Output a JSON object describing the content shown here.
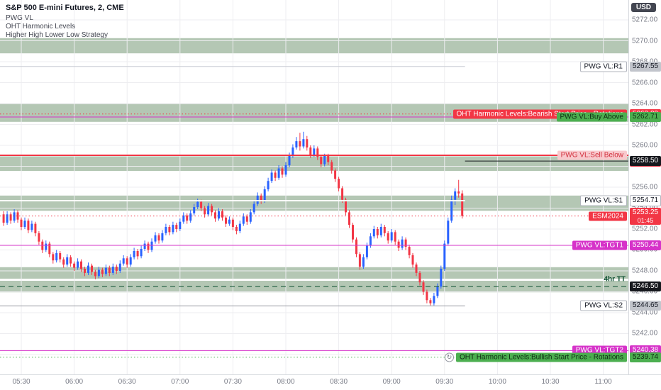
{
  "legend": {
    "title": "S&P 500 E-mini Futures, 2, CME",
    "lines": [
      "PWG VL",
      "OHT Harmonic Levels",
      "Higher High Lower Low Strategy"
    ]
  },
  "currency_badge": "USD",
  "colors": {
    "up": "#2962ff",
    "down": "#f23645",
    "band": "#b4c7b4",
    "grid": "#ededf0",
    "axis_text": "#787b86",
    "background": "#ffffff",
    "axis_border": "#d6d9de"
  },
  "chart_data": {
    "type": "candlestick",
    "symbol": "ESM2024",
    "title": "S&P 500 E-mini Futures, 2, CME",
    "interval_label": "2",
    "exchange": "CME",
    "step_minutes": 2,
    "start_time": "05:20",
    "last_price": "5253.25",
    "ylim": [
      5238.1,
      5273.9
    ],
    "time_axis": {
      "ticks": [
        "05:30",
        "06:00",
        "06:30",
        "07:00",
        "07:30",
        "08:00",
        "08:30",
        "09:00",
        "09:30",
        "10:00",
        "10:30",
        "11:00"
      ],
      "first_tick_x": 30,
      "spacing_px": 74.6
    },
    "price_axis": {
      "labels": [
        "5272.00",
        "5270.00",
        "5268.00",
        "5266.00",
        "5264.00",
        "5262.00",
        "5260.00",
        "5256.00",
        "5254.00",
        "5252.00",
        "5250.00",
        "5248.00",
        "5246.00",
        "5244.00",
        "5242.00"
      ]
    },
    "bands": [
      [
        5270.25,
        5268.8
      ],
      [
        5263.95,
        5262.25
      ],
      [
        5258.95,
        5257.55
      ],
      [
        5255.2,
        5253.75
      ],
      [
        5248.35,
        5247.25
      ],
      [
        5247.05,
        5245.95
      ]
    ],
    "levels": [
      {
        "name": "pwg-r1",
        "tag": "PWG VL:R1",
        "value": "5267.55",
        "price": 5267.55,
        "line": {
          "color": "#c9ccd3",
          "style": "solid",
          "span": "to-last",
          "width": 1
        },
        "tag_bg": "#ffffff",
        "tag_fg": "#131722",
        "tag_border": "#b2b5be",
        "box_bg": "#c2c5cc",
        "box_fg": "#131722"
      },
      {
        "name": "oht-bearish-start",
        "tag": "OHT Harmonic Levels:Bearish Start Price - Rotations",
        "value": "5263.00",
        "price": 5263.0,
        "line": {
          "color": "#f23645",
          "style": "dotted",
          "span": "full",
          "width": 1
        },
        "tag_bg": "#f23645",
        "tag_fg": "#ffffff",
        "box_bg": "#f23645",
        "box_fg": "#ffffff"
      },
      {
        "name": "pwg-buy-above",
        "tag": "PWG VL:Buy Above",
        "value": "5262.71",
        "price": 5262.71,
        "line": {
          "color": "#d633c9",
          "style": "solid",
          "span": "full",
          "width": 1
        },
        "tag_bg": "#4caf50",
        "tag_fg": "#0d2a12",
        "box_bg": "#4caf50",
        "box_fg": "#0d2a12"
      },
      {
        "name": "pwg-sell-below",
        "tag": "PWG VL:Sell Below",
        "value": "5258.43",
        "price": 5258.43,
        "render_price": 5259.05,
        "line": {
          "color": "#f23645",
          "style": "solid",
          "span": "full",
          "width": 2
        },
        "tag_bg": "#f8c9cd",
        "tag_fg": "#d22f3c",
        "box_bg": "#f23645",
        "box_fg": "#ffffff"
      },
      {
        "name": "close-line",
        "value": "5258.50",
        "price": 5258.5,
        "line": {
          "color": "#16181d",
          "style": "solid",
          "span": "from-last",
          "width": 1
        },
        "box_bg": "#16181d",
        "box_fg": "#ffffff"
      },
      {
        "name": "pwg-s1",
        "tag": "PWG VL:S1",
        "value": "5254.71",
        "price": 5254.71,
        "line": {
          "color": "#ffffff",
          "style": "solid",
          "span": "to-last",
          "width": 2
        },
        "tag_bg": "#ffffff",
        "tag_fg": "#131722",
        "tag_border": "#b2b5be",
        "box_bg": "#ffffff",
        "box_fg": "#131722",
        "box_border": "#b2b5be"
      },
      {
        "name": "current-price",
        "tag": "ESM2024",
        "value": "5253.25",
        "countdown": "01:45",
        "price": 5253.25,
        "line": {
          "color": "#f23645",
          "style": "dotted",
          "span": "full",
          "width": 1
        },
        "tag_bg": "#f23645",
        "tag_fg": "#ffffff",
        "box_bg": "#f23645",
        "box_fg": "#ffffff"
      },
      {
        "name": "pwg-tgt1",
        "tag": "PWG VL:TGT1",
        "value": "5250.44",
        "price": 5250.44,
        "line": {
          "color": "#d633c9",
          "style": "solid",
          "span": "full",
          "width": 1
        },
        "tag_bg": "#d633c9",
        "tag_fg": "#ffffff",
        "box_bg": "#d633c9",
        "box_fg": "#ffffff"
      },
      {
        "name": "4hr-tt",
        "tag": "4hr TT",
        "value": "5246.50",
        "price": 5246.5,
        "tag_price": 5247.2,
        "line": {
          "color": "#0f5132",
          "style": "dashed",
          "span": "full",
          "width": 1
        },
        "tag_bg": "none",
        "tag_fg": "#0f5132",
        "box_bg": "#16181d",
        "box_fg": "#ffffff"
      },
      {
        "name": "pwg-s2",
        "tag": "PWG VL:S2",
        "value": "5244.65",
        "price": 5244.65,
        "line": {
          "color": "#9598a1",
          "style": "solid",
          "span": "to-last",
          "width": 1
        },
        "tag_bg": "#ffffff",
        "tag_fg": "#131722",
        "tag_border": "#b2b5be",
        "box_bg": "#c2c5cc",
        "box_fg": "#131722"
      },
      {
        "name": "pwg-tgt2",
        "tag": "PWG VL:TGT2",
        "value": "5240.38",
        "price": 5240.38,
        "line": {
          "color": "#d633c9",
          "style": "solid",
          "span": "full",
          "width": 1
        },
        "tag_bg": "#d633c9",
        "tag_fg": "#ffffff",
        "box_bg": "#d633c9",
        "box_fg": "#ffffff"
      },
      {
        "name": "oht-bullish-start",
        "tag": "OHT Harmonic Levels:Bullish Start Price - Rotations",
        "value": "5239.74",
        "price": 5239.74,
        "icon": true,
        "line": {
          "color": "#4caf50",
          "style": "dotted",
          "span": "full",
          "width": 1
        },
        "tag_bg": "#4caf50",
        "tag_fg": "#0d2a12",
        "box_bg": "#4caf50",
        "box_fg": "#0d2a12"
      }
    ],
    "ohlc": [
      [
        5253.4,
        5253.7,
        5252.3,
        5252.6
      ],
      [
        5252.6,
        5253.7,
        5252.4,
        5253.4
      ],
      [
        5253.4,
        5253.6,
        5252.5,
        5252.8
      ],
      [
        5252.8,
        5253.9,
        5252.6,
        5253.6
      ],
      [
        5253.6,
        5253.8,
        5252.6,
        5252.9
      ],
      [
        5252.9,
        5253.1,
        5251.9,
        5252.2
      ],
      [
        5252.2,
        5253.1,
        5252.0,
        5252.8
      ],
      [
        5252.8,
        5253.0,
        5251.6,
        5251.9
      ],
      [
        5251.9,
        5252.8,
        5251.7,
        5252.5
      ],
      [
        5252.5,
        5252.7,
        5251.3,
        5251.6
      ],
      [
        5251.6,
        5251.8,
        5250.5,
        5250.8
      ],
      [
        5250.8,
        5251.0,
        5249.7,
        5250.0
      ],
      [
        5250.0,
        5250.9,
        5249.8,
        5250.6
      ],
      [
        5250.6,
        5250.8,
        5249.3,
        5249.6
      ],
      [
        5249.6,
        5249.8,
        5248.7,
        5249.0
      ],
      [
        5249.0,
        5250.0,
        5248.8,
        5249.7
      ],
      [
        5249.7,
        5249.9,
        5248.8,
        5249.1
      ],
      [
        5249.1,
        5249.3,
        5248.3,
        5248.6
      ],
      [
        5248.6,
        5249.6,
        5248.4,
        5249.3
      ],
      [
        5249.3,
        5249.5,
        5248.4,
        5248.7
      ],
      [
        5248.7,
        5248.9,
        5248.0,
        5248.3
      ],
      [
        5248.3,
        5249.2,
        5248.1,
        5248.9
      ],
      [
        5248.9,
        5249.1,
        5247.9,
        5248.2
      ],
      [
        5248.2,
        5248.4,
        5247.5,
        5247.8
      ],
      [
        5247.8,
        5248.8,
        5247.6,
        5248.5
      ],
      [
        5248.5,
        5248.7,
        5247.6,
        5247.9
      ],
      [
        5247.9,
        5248.1,
        5247.2,
        5247.5
      ],
      [
        5247.5,
        5248.4,
        5247.3,
        5248.1
      ],
      [
        5248.1,
        5248.3,
        5247.4,
        5247.7
      ],
      [
        5247.7,
        5248.6,
        5247.5,
        5248.3
      ],
      [
        5248.3,
        5248.5,
        5247.5,
        5247.8
      ],
      [
        5247.8,
        5248.7,
        5247.6,
        5248.4
      ],
      [
        5248.4,
        5248.6,
        5247.7,
        5248.0
      ],
      [
        5248.0,
        5249.0,
        5247.8,
        5248.7
      ],
      [
        5248.7,
        5249.5,
        5248.5,
        5249.2
      ],
      [
        5249.2,
        5249.4,
        5248.3,
        5248.6
      ],
      [
        5248.6,
        5249.6,
        5248.4,
        5249.3
      ],
      [
        5249.3,
        5250.2,
        5249.1,
        5249.9
      ],
      [
        5249.9,
        5250.1,
        5249.1,
        5249.4
      ],
      [
        5249.4,
        5250.4,
        5249.2,
        5250.1
      ],
      [
        5250.1,
        5250.9,
        5249.9,
        5250.6
      ],
      [
        5250.6,
        5250.8,
        5249.7,
        5250.0
      ],
      [
        5250.0,
        5251.1,
        5249.8,
        5250.8
      ],
      [
        5250.8,
        5251.7,
        5250.6,
        5251.4
      ],
      [
        5251.4,
        5251.6,
        5250.6,
        5250.9
      ],
      [
        5250.9,
        5251.9,
        5250.7,
        5251.6
      ],
      [
        5251.6,
        5252.5,
        5251.4,
        5252.2
      ],
      [
        5252.2,
        5252.4,
        5251.4,
        5251.7
      ],
      [
        5251.7,
        5252.7,
        5251.5,
        5252.4
      ],
      [
        5252.4,
        5252.6,
        5251.7,
        5252.0
      ],
      [
        5252.0,
        5253.0,
        5251.8,
        5252.7
      ],
      [
        5252.7,
        5253.6,
        5252.5,
        5253.3
      ],
      [
        5253.3,
        5253.5,
        5252.5,
        5252.8
      ],
      [
        5252.8,
        5253.8,
        5252.6,
        5253.5
      ],
      [
        5253.5,
        5254.4,
        5253.3,
        5254.1
      ],
      [
        5254.1,
        5254.9,
        5253.9,
        5254.6
      ],
      [
        5254.6,
        5254.8,
        5253.7,
        5254.0
      ],
      [
        5254.0,
        5254.2,
        5253.1,
        5253.4
      ],
      [
        5253.4,
        5254.5,
        5253.2,
        5254.2
      ],
      [
        5254.2,
        5254.4,
        5253.3,
        5253.6
      ],
      [
        5253.6,
        5253.8,
        5252.7,
        5253.0
      ],
      [
        5253.0,
        5254.0,
        5252.8,
        5253.7
      ],
      [
        5253.7,
        5253.9,
        5252.8,
        5253.1
      ],
      [
        5253.1,
        5253.3,
        5252.2,
        5252.5
      ],
      [
        5252.5,
        5253.2,
        5252.3,
        5252.9
      ],
      [
        5252.9,
        5253.1,
        5251.9,
        5252.2
      ],
      [
        5252.2,
        5252.4,
        5251.5,
        5251.8
      ],
      [
        5251.8,
        5252.8,
        5251.6,
        5252.5
      ],
      [
        5252.5,
        5253.5,
        5252.3,
        5253.2
      ],
      [
        5253.2,
        5253.4,
        5252.4,
        5252.7
      ],
      [
        5252.7,
        5253.9,
        5252.5,
        5253.6
      ],
      [
        5253.6,
        5254.7,
        5253.4,
        5254.4
      ],
      [
        5254.4,
        5255.5,
        5254.2,
        5255.2
      ],
      [
        5255.2,
        5255.4,
        5254.4,
        5254.7
      ],
      [
        5254.7,
        5256.1,
        5254.5,
        5255.8
      ],
      [
        5255.8,
        5256.9,
        5255.6,
        5256.6
      ],
      [
        5256.6,
        5257.7,
        5256.4,
        5257.4
      ],
      [
        5257.4,
        5257.6,
        5256.6,
        5256.9
      ],
      [
        5256.9,
        5258.1,
        5256.7,
        5257.8
      ],
      [
        5257.8,
        5258.0,
        5256.9,
        5257.2
      ],
      [
        5257.2,
        5258.4,
        5257.0,
        5258.1
      ],
      [
        5258.1,
        5259.3,
        5257.9,
        5259.0
      ],
      [
        5259.0,
        5260.1,
        5258.8,
        5259.8
      ],
      [
        5259.8,
        5260.8,
        5259.6,
        5260.4
      ],
      [
        5260.4,
        5261.2,
        5259.5,
        5259.9
      ],
      [
        5259.9,
        5261.3,
        5259.7,
        5260.6
      ],
      [
        5260.6,
        5260.9,
        5259.5,
        5259.8
      ],
      [
        5259.8,
        5260.0,
        5258.8,
        5259.1
      ],
      [
        5259.1,
        5260.0,
        5258.9,
        5259.7
      ],
      [
        5259.7,
        5259.9,
        5258.6,
        5258.9
      ],
      [
        5258.9,
        5259.1,
        5257.9,
        5258.2
      ],
      [
        5258.2,
        5259.2,
        5258.0,
        5259.0
      ],
      [
        5259.0,
        5259.2,
        5258.1,
        5258.4
      ],
      [
        5258.4,
        5258.6,
        5257.3,
        5257.6
      ],
      [
        5257.6,
        5257.8,
        5256.5,
        5256.8
      ],
      [
        5256.8,
        5257.0,
        5255.6,
        5255.9
      ],
      [
        5255.9,
        5256.1,
        5254.5,
        5254.8
      ],
      [
        5254.8,
        5255.0,
        5253.3,
        5253.6
      ],
      [
        5253.6,
        5253.8,
        5252.1,
        5252.4
      ],
      [
        5252.4,
        5252.6,
        5250.7,
        5251.0
      ],
      [
        5251.0,
        5251.2,
        5249.3,
        5249.6
      ],
      [
        5249.6,
        5249.8,
        5248.1,
        5248.4
      ],
      [
        5248.4,
        5249.6,
        5248.2,
        5249.3
      ],
      [
        5249.3,
        5250.7,
        5249.1,
        5250.4
      ],
      [
        5250.4,
        5251.6,
        5250.2,
        5251.3
      ],
      [
        5251.3,
        5252.3,
        5251.1,
        5252.0
      ],
      [
        5252.0,
        5252.2,
        5251.1,
        5251.4
      ],
      [
        5251.4,
        5252.5,
        5251.2,
        5252.2
      ],
      [
        5252.2,
        5252.4,
        5251.3,
        5251.6
      ],
      [
        5251.6,
        5251.8,
        5250.6,
        5250.9
      ],
      [
        5250.9,
        5252.0,
        5250.7,
        5251.7
      ],
      [
        5251.7,
        5251.9,
        5250.5,
        5250.8
      ],
      [
        5250.8,
        5251.0,
        5249.9,
        5250.2
      ],
      [
        5250.2,
        5251.3,
        5250.0,
        5251.0
      ],
      [
        5251.0,
        5251.2,
        5250.0,
        5250.3
      ],
      [
        5250.3,
        5250.5,
        5249.2,
        5249.5
      ],
      [
        5249.5,
        5249.7,
        5248.3,
        5248.6
      ],
      [
        5248.6,
        5248.8,
        5247.5,
        5247.8
      ],
      [
        5247.8,
        5248.0,
        5246.6,
        5246.9
      ],
      [
        5246.9,
        5247.1,
        5245.7,
        5246.0
      ],
      [
        5246.0,
        5246.2,
        5244.9,
        5245.2
      ],
      [
        5245.2,
        5245.4,
        5244.7,
        5244.9
      ],
      [
        5244.9,
        5245.9,
        5244.7,
        5245.6
      ],
      [
        5245.6,
        5246.8,
        5245.4,
        5246.5
      ],
      [
        5246.5,
        5248.5,
        5246.3,
        5248.2
      ],
      [
        5248.2,
        5250.9,
        5248.0,
        5250.6
      ],
      [
        5250.6,
        5253.1,
        5250.4,
        5252.8
      ],
      [
        5252.8,
        5255.2,
        5252.6,
        5254.8
      ],
      [
        5254.8,
        5255.9,
        5254.3,
        5255.6
      ],
      [
        5255.6,
        5256.7,
        5255.0,
        5255.4
      ],
      [
        5255.4,
        5255.7,
        5253.0,
        5253.25
      ]
    ]
  }
}
